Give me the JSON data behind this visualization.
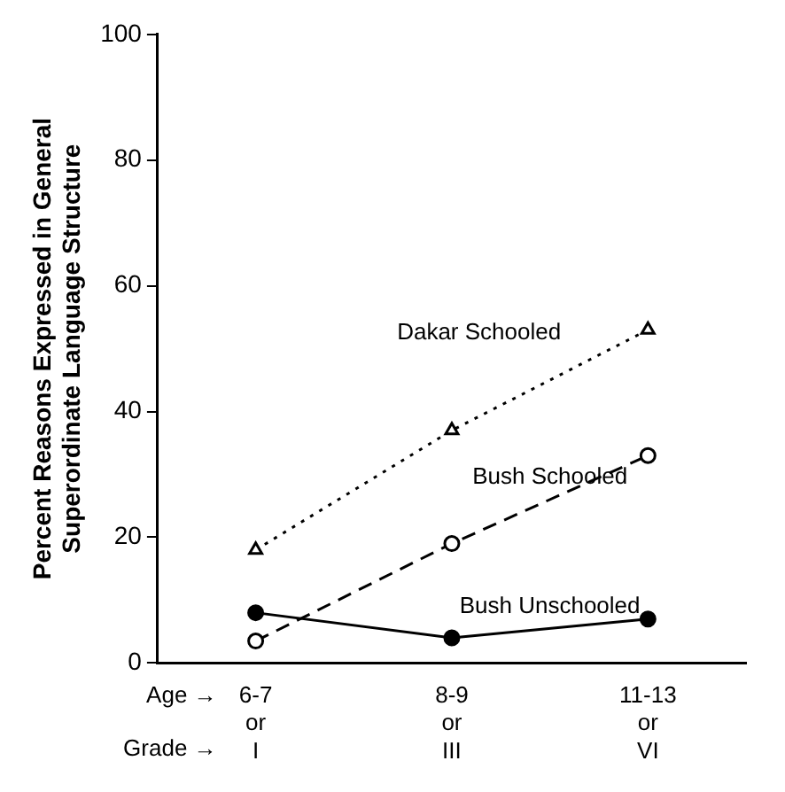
{
  "chart_data": {
    "type": "line",
    "ylabel": "Percent Reasons Expressed in General\nSuperordinate Language Structure",
    "categories": [
      "6-7\nor\nI",
      "8-9\nor\nIII",
      "11-13\nor\nVI"
    ],
    "series": [
      {
        "name": "Dakar Schooled",
        "color": "#000000",
        "values": [
          18,
          37,
          53
        ],
        "marker": "triangle",
        "line_style": "dotted"
      },
      {
        "name": "Bush Schooled",
        "color": "#000000",
        "values": [
          3.5,
          19,
          33
        ],
        "marker": "circle",
        "line_style": "dashed"
      },
      {
        "name": "Bush Unschooled",
        "color": "#000000",
        "values": [
          8,
          4,
          7
        ],
        "marker": "circle",
        "line_style": "solid"
      }
    ],
    "ylim": [
      0,
      100
    ],
    "yticks": [
      0,
      20,
      40,
      60,
      80,
      100
    ],
    "grid": false,
    "legend": false,
    "annotations": [
      "Age →",
      "Grade →"
    ]
  }
}
